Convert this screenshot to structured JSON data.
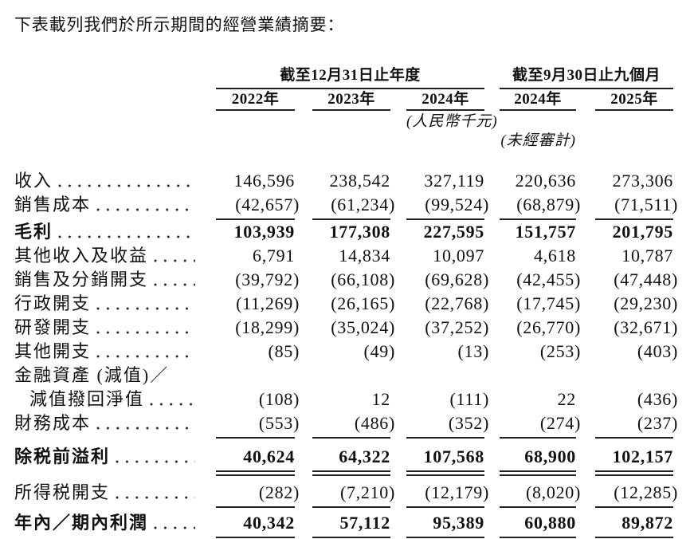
{
  "title": "下表載列我們於所示期間的經營業績摘要：",
  "table": {
    "col_groups": [
      {
        "label": "截至12月31日止年度",
        "years": [
          "2022年",
          "2023年",
          "2024年"
        ]
      },
      {
        "label": "截至9月30日止九個月",
        "years": [
          "2024年",
          "2025年"
        ]
      }
    ],
    "unit_note": "(人民幣千元)",
    "unaudited_note": "(未經審計)",
    "rows": [
      {
        "label": "收入",
        "values": [
          "146,596",
          "238,542",
          "327,119",
          "220,636",
          "273,306"
        ]
      },
      {
        "label": "銷售成本",
        "values": [
          "(42,657)",
          "(61,234)",
          "(99,524)",
          "(68,879)",
          "(71,511)"
        ]
      },
      {
        "label": "毛利",
        "values": [
          "103,939",
          "177,308",
          "227,595",
          "151,757",
          "201,795"
        ]
      },
      {
        "label": "其他收入及收益",
        "values": [
          "6,791",
          "14,834",
          "10,097",
          "4,618",
          "10,787"
        ]
      },
      {
        "label": "銷售及分銷開支",
        "values": [
          "(39,792)",
          "(66,108)",
          "(69,628)",
          "(42,455)",
          "(47,448)"
        ]
      },
      {
        "label": "行政開支",
        "values": [
          "(11,269)",
          "(26,165)",
          "(22,768)",
          "(17,745)",
          "(29,230)"
        ]
      },
      {
        "label": "研發開支",
        "values": [
          "(18,299)",
          "(35,024)",
          "(37,252)",
          "(26,770)",
          "(32,671)"
        ]
      },
      {
        "label": "其他開支",
        "values": [
          "(85)",
          "(49)",
          "(13)",
          "(253)",
          "(403)"
        ]
      },
      {
        "label": "金融資產 (減值)／",
        "values": []
      },
      {
        "label": "減值撥回淨值",
        "values": [
          "(108)",
          "12",
          "(111)",
          "22",
          "(436)"
        ]
      },
      {
        "label": "財務成本",
        "values": [
          "(553)",
          "(486)",
          "(352)",
          "(274)",
          "(237)"
        ]
      },
      {
        "label": "除税前溢利",
        "values": [
          "40,624",
          "64,322",
          "107,568",
          "68,900",
          "102,157"
        ]
      },
      {
        "label": "所得税開支",
        "values": [
          "(282)",
          "(7,210)",
          "(12,179)",
          "(8,020)",
          "(12,285)"
        ]
      },
      {
        "label": "年內／期內利潤",
        "values": [
          "40,342",
          "57,112",
          "95,389",
          "60,880",
          "89,872"
        ]
      }
    ]
  }
}
